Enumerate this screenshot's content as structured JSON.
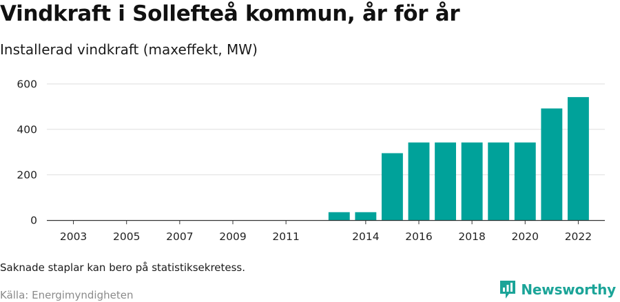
{
  "title": "Vindkraft i Sollefteå kommun, år för år",
  "subtitle": "Installerad vindkraft (maxeffekt, MW)",
  "note": "Saknade staplar kan bero på statistiksekretess.",
  "source": "Källa: Energimyndigheten",
  "brand": {
    "name": "Newsworthy",
    "icon": "newsworthy-logo-icon",
    "color": "#1ba498"
  },
  "chart_data": {
    "type": "bar",
    "categories": [
      "2013",
      "2014",
      "2015",
      "2016",
      "2017",
      "2018",
      "2019",
      "2020",
      "2021",
      "2022"
    ],
    "values": [
      35,
      35,
      295,
      342,
      342,
      342,
      342,
      342,
      492,
      542
    ],
    "x_range": [
      2002,
      2023
    ],
    "x_ticks": [
      "2003",
      "2005",
      "2007",
      "2009",
      "2011",
      "2014",
      "2016",
      "2018",
      "2020",
      "2022"
    ],
    "ylim": [
      0,
      600
    ],
    "y_ticks": [
      0,
      200,
      400,
      600
    ],
    "grid": true,
    "legend": "none",
    "bar_color": "#00a29a"
  }
}
